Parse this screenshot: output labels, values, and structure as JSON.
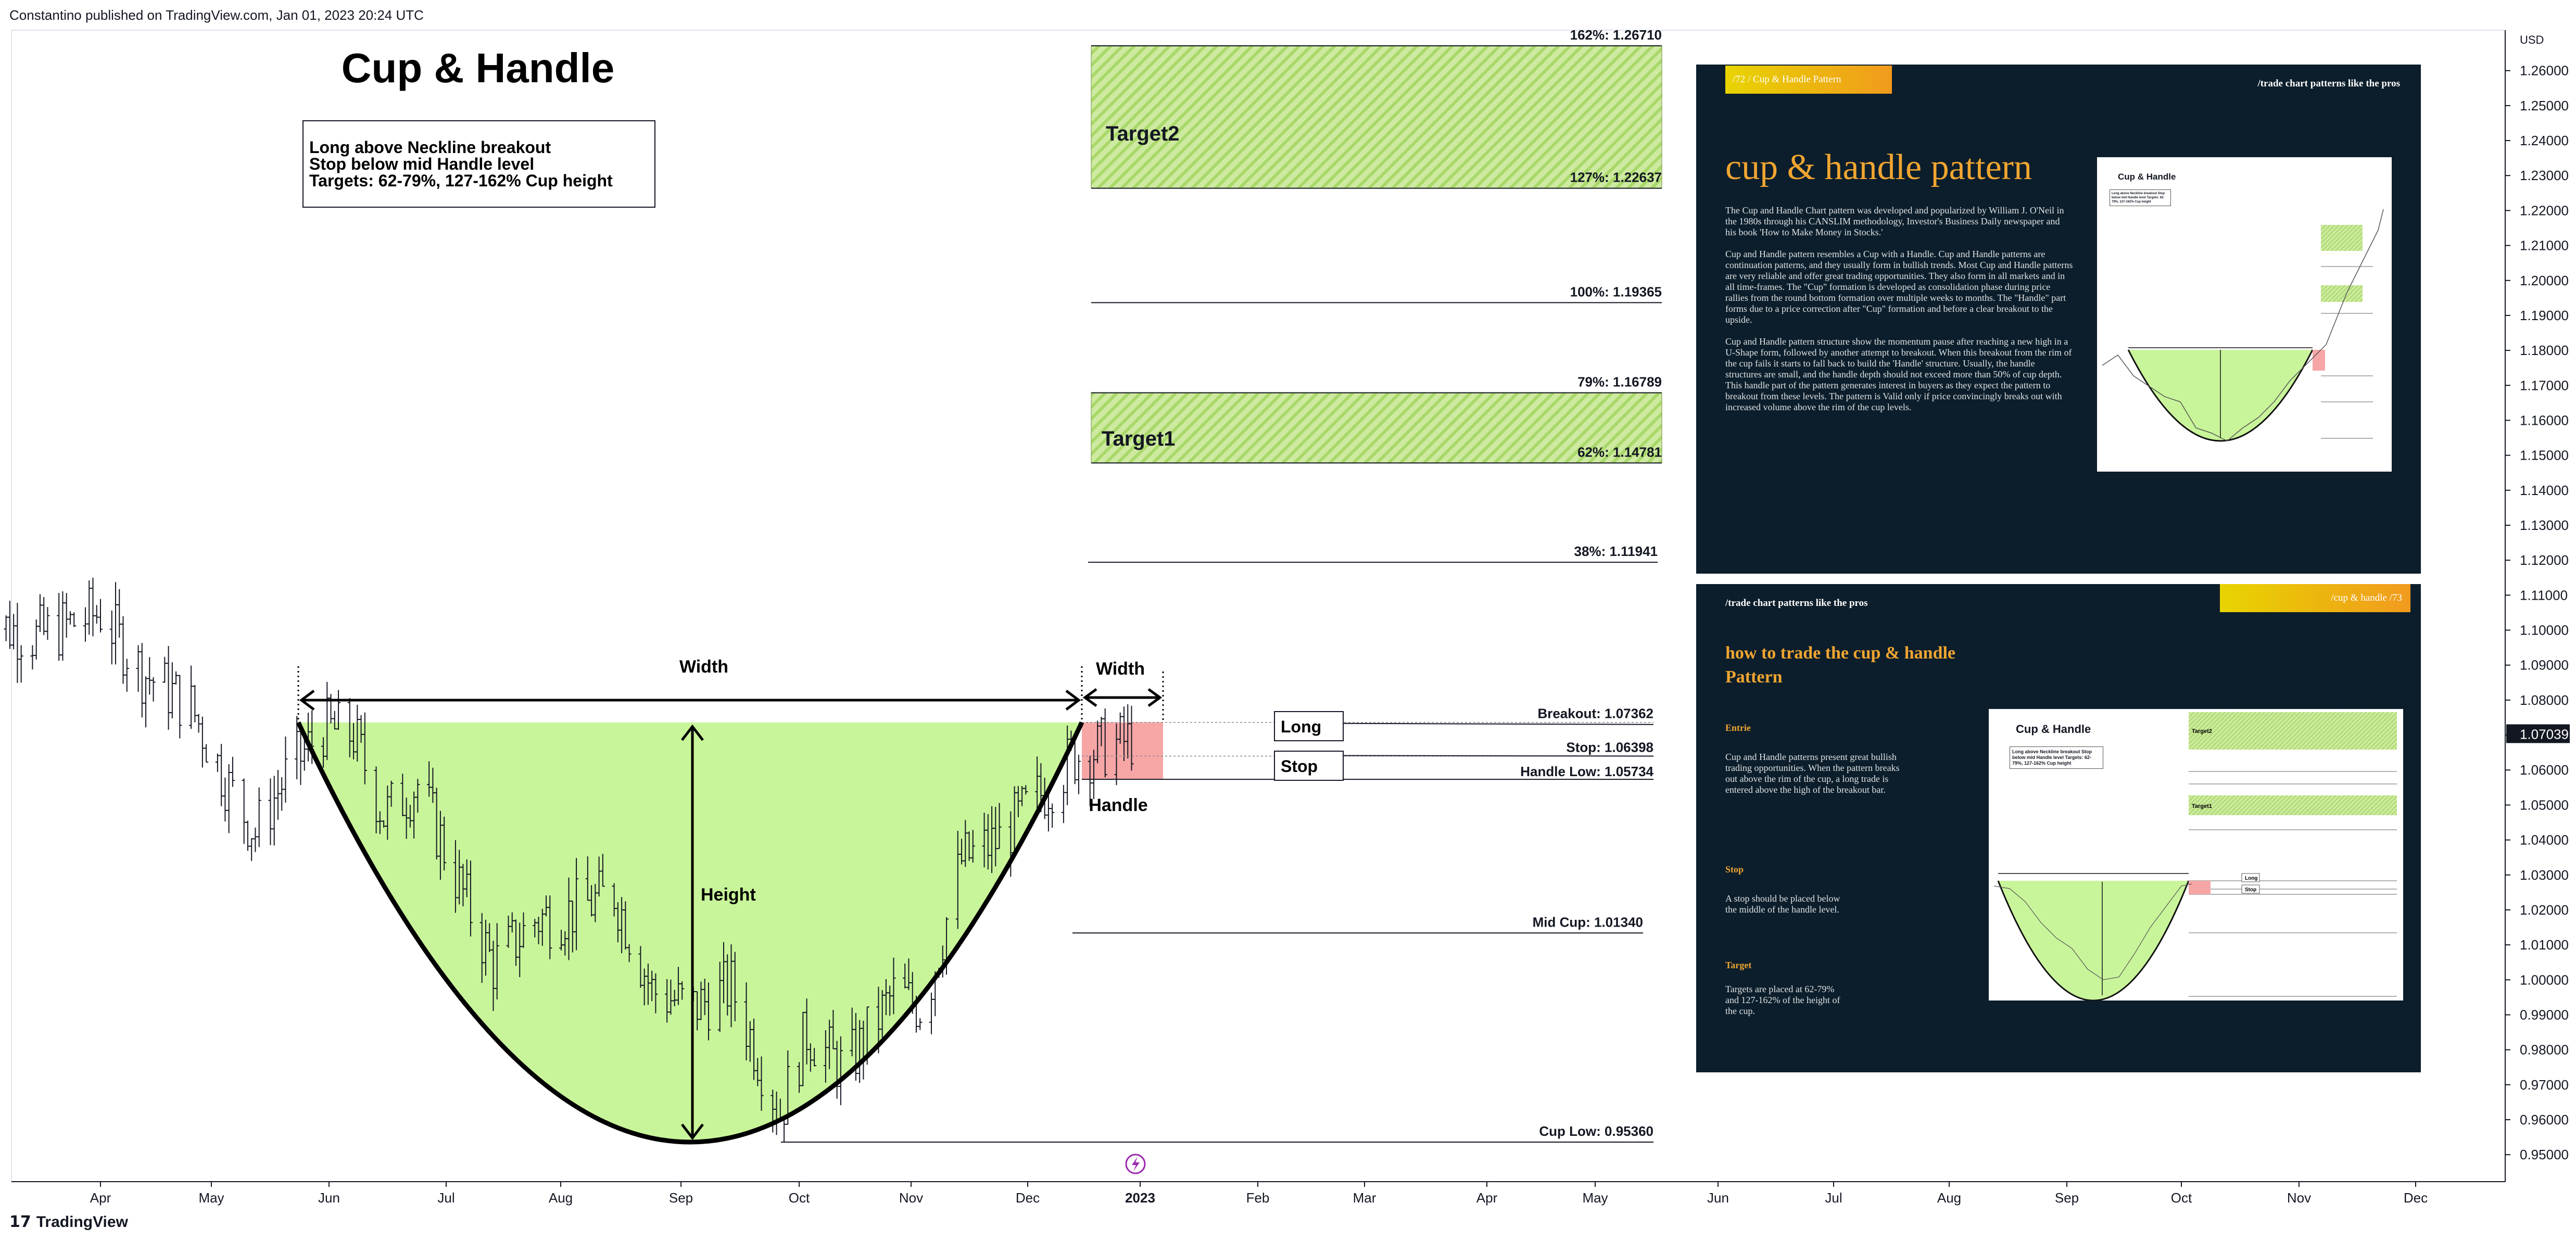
{
  "header": {
    "text": "Constantino published on TradingView.com, Jan 01, 2023 20:24 UTC"
  },
  "footer": {
    "logo_text": "TradingView",
    "logo_mark": "17"
  },
  "annotations": {
    "title": "Cup & Handle",
    "box_lines": [
      "Long above Neckline breakout",
      "Stop below mid Handle level",
      "Targets: 62-79%, 127-162% Cup height"
    ],
    "target2": "Target2",
    "target1": "Target1",
    "width_label": "Width",
    "height_label": "Height",
    "handle_label": "Handle",
    "long_label": "Long",
    "stop_label": "Stop"
  },
  "chart_data": {
    "type": "line",
    "xlabel": "",
    "ylabel": "",
    "y_unit": "USD",
    "ylim": [
      0.9455,
      1.2766
    ],
    "y_ticks": [
      1.26,
      1.25,
      1.24,
      1.23,
      1.22,
      1.21,
      1.2,
      1.19,
      1.18,
      1.17,
      1.16,
      1.15,
      1.14,
      1.13,
      1.12,
      1.11,
      1.1,
      1.09,
      1.08,
      1.07,
      1.06,
      1.05,
      1.04,
      1.03,
      1.02,
      1.01,
      1.0,
      0.99,
      0.98,
      0.97,
      0.96,
      0.95
    ],
    "x_ticks": [
      "Apr",
      "May",
      "Jun",
      "Jul",
      "Aug",
      "Sep",
      "Oct",
      "Nov",
      "Dec",
      "2023",
      "Feb",
      "Mar",
      "Apr",
      "May",
      "Jun",
      "Jul",
      "Aug",
      "Sep",
      "Oct",
      "Nov",
      "Dec"
    ],
    "last_price": "1.07039",
    "levels": [
      {
        "label": "162%: 1.26710",
        "value": 1.2671
      },
      {
        "label": "127%: 1.22637",
        "value": 1.22637
      },
      {
        "label": "100%: 1.19365",
        "value": 1.19365
      },
      {
        "label": "79%: 1.16789",
        "value": 1.16789
      },
      {
        "label": "62%: 1.14781",
        "value": 1.14781
      },
      {
        "label": "38%: 1.11941",
        "value": 1.11941
      },
      {
        "label": "Breakout: 1.07362",
        "value": 1.07362
      },
      {
        "label": "Stop: 1.06398",
        "value": 1.06398
      },
      {
        "label": "Handle Low: 1.05734",
        "value": 1.05734
      },
      {
        "label": "Mid Cup: 1.01340",
        "value": 1.0134
      },
      {
        "label": "Cup Low: 0.95360",
        "value": 0.9536
      }
    ],
    "series": [
      {
        "values": [
          {
            "x": "2022-03-01",
            "y": 1.103
          },
          {
            "x": "2022-03-15",
            "y": 1.098
          },
          {
            "x": "2022-04-01",
            "y": 1.105
          },
          {
            "x": "2022-04-12",
            "y": 1.088
          },
          {
            "x": "2022-04-25",
            "y": 1.078
          },
          {
            "x": "2022-05-05",
            "y": 1.055
          },
          {
            "x": "2022-05-12",
            "y": 1.042
          },
          {
            "x": "2022-05-20",
            "y": 1.058
          },
          {
            "x": "2022-05-30",
            "y": 1.072
          },
          {
            "x": "2022-06-07",
            "y": 1.07
          },
          {
            "x": "2022-06-15",
            "y": 1.047
          },
          {
            "x": "2022-06-24",
            "y": 1.056
          },
          {
            "x": "2022-07-05",
            "y": 1.027
          },
          {
            "x": "2022-07-14",
            "y": 1.004
          },
          {
            "x": "2022-07-25",
            "y": 1.017
          },
          {
            "x": "2022-08-05",
            "y": 1.02
          },
          {
            "x": "2022-08-15",
            "y": 1.025
          },
          {
            "x": "2022-08-25",
            "y": 0.997
          },
          {
            "x": "2022-09-05",
            "y": 0.992
          },
          {
            "x": "2022-09-15",
            "y": 0.998
          },
          {
            "x": "2022-09-28",
            "y": 0.962
          },
          {
            "x": "2022-10-05",
            "y": 0.985
          },
          {
            "x": "2022-10-15",
            "y": 0.974
          },
          {
            "x": "2022-10-28",
            "y": 0.996
          },
          {
            "x": "2022-11-05",
            "y": 0.992
          },
          {
            "x": "2022-11-15",
            "y": 1.034
          },
          {
            "x": "2022-11-25",
            "y": 1.04
          },
          {
            "x": "2022-12-05",
            "y": 1.052
          },
          {
            "x": "2022-12-15",
            "y": 1.064
          },
          {
            "x": "2022-12-28",
            "y": 1.068
          },
          {
            "x": "2023-01-01",
            "y": 1.07
          }
        ]
      }
    ]
  },
  "panel_top": {
    "tag": "/72   / Cup & Handle Pattern",
    "slogan": "/trade chart patterns like the pros",
    "heading": "cup & handle pattern",
    "paragraphs": [
      "The Cup and Handle Chart pattern was developed and popularized by William J. O'Neil in the 1980s through his CANSLIM methodology, Investor's Business Daily newspaper and his book 'How to Make Money in Stocks.'",
      "Cup and Handle pattern resembles a Cup with a Handle. Cup and Handle patterns are continuation patterns, and they usually form in bullish trends. Most Cup and Handle patterns are very reliable and offer great trading opportunities. They also form in all markets and in all time-frames. The \"Cup\" formation is developed as consolidation phase during price rallies from the round bottom formation over multiple weeks to months. The \"Handle\" part forms due to a price correction after \"Cup\" formation and before a clear breakout to the upside.",
      "Cup and Handle pattern structure show the momentum pause after reaching a new high in a U-Shape form, followed by another attempt to breakout. When this breakout from the rim of the cup fails it starts to fall back to build the 'Handle' structure. Usually, the handle structures are small, and the handle depth should not exceed more than 50% of cup depth. This handle part of the pattern generates interest in buyers as they expect the pattern to breakout from these levels. The pattern is Valid only if price convincingly breaks out with increased volume above the rim of the cup levels."
    ],
    "mini_title": "Cup & Handle",
    "mini_box": "Long above Neckline breakout Stop below mid Handle level Targets: 62-79%, 127-162% Cup height"
  },
  "panel_bottom": {
    "slogan": "/trade chart patterns like the pros",
    "tag": "/cup & handle   /73",
    "heading_lines": [
      "how to trade the cup & handle",
      "Pattern"
    ],
    "sections": [
      {
        "title": "Entrie",
        "text": "Cup and Handle patterns present great bullish trading opportunities. When the pattern breaks out above the rim of the cup, a long trade is entered above the high of the breakout bar."
      },
      {
        "title": "Stop",
        "text": "A stop should be placed below the middle of the handle level."
      },
      {
        "title": "Target",
        "text": "Targets are placed at 62-79% and 127-162% of the height of the cup."
      }
    ],
    "mini_title": "Cup & Handle",
    "mini_box": "Long above Neckline breakout Stop below mid Handle level Targets: 62-79%, 127-162% Cup height",
    "mini_target2": "Target2",
    "mini_target1": "Target1",
    "mini_long": "Long",
    "mini_stop": "Stop"
  }
}
